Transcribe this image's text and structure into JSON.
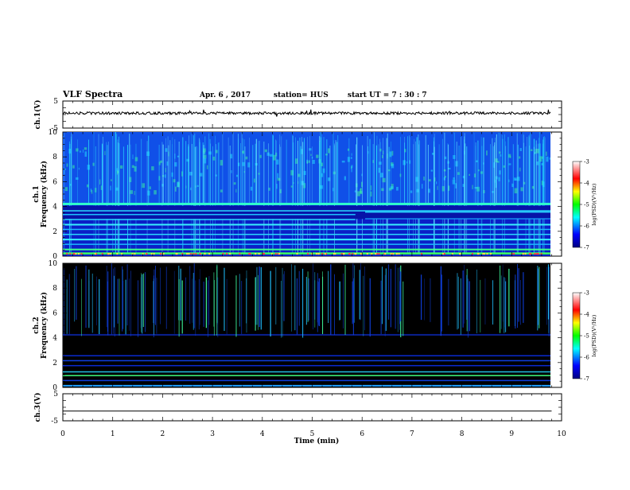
{
  "header": {
    "title": "VLF Spectra",
    "date": "Apr. 6 , 2017",
    "station": "station= HUS",
    "start": "start  UT =   7 : 30 : 7"
  },
  "chart_data": [
    {
      "type": "line",
      "name": "ch1-waveform",
      "ylabel": "ch.1(V)",
      "ylim": [
        -5,
        5
      ],
      "yticks": [
        "5",
        "-5"
      ],
      "xlim": [
        0,
        10
      ],
      "description_level": 0.5,
      "noise_amplitude": 0.4
    },
    {
      "type": "heatmap",
      "name": "ch1-spectrogram",
      "ylabel": "ch.1\nFrequency (kHz)",
      "ylim": [
        0,
        10
      ],
      "yticks": [
        "0",
        "2",
        "4",
        "6",
        "8",
        "10"
      ],
      "xlim": [
        0,
        10
      ],
      "colorbar": {
        "label": "log(PSD)(V²/Hz)",
        "range": [
          -7,
          -3
        ],
        "ticks": [
          "-3",
          "-4",
          "-5",
          "-6",
          "-7"
        ]
      }
    },
    {
      "type": "heatmap",
      "name": "ch2-spectrogram",
      "ylabel": "ch.2\nFrequency (kHz)",
      "ylim": [
        0,
        10
      ],
      "yticks": [
        "0",
        "2",
        "4",
        "6",
        "8",
        "10"
      ],
      "xlim": [
        0,
        10
      ],
      "colorbar": {
        "label": "log(PSD)(V²/Hz)",
        "range": [
          -7,
          -3
        ],
        "ticks": [
          "-3",
          "-4",
          "-5",
          "-6",
          "-7"
        ]
      }
    },
    {
      "type": "line",
      "name": "ch3-waveform",
      "ylabel": "ch.3(V)",
      "ylim": [
        -5,
        5
      ],
      "yticks": [
        "5",
        "-5"
      ],
      "xlim": [
        0,
        10
      ],
      "x": [
        0,
        9.8
      ],
      "y": [
        -1.4,
        -1.4
      ]
    }
  ],
  "xaxis": {
    "label": "Time  (min)",
    "ticks": [
      "0",
      "1",
      "2",
      "3",
      "4",
      "5",
      "6",
      "7",
      "8",
      "9",
      "10"
    ]
  },
  "colors": {
    "background_ch1": "#0a2fd8",
    "background_ch2": "#000000",
    "cyan": "#22e8ff",
    "green": "#33ff66"
  }
}
